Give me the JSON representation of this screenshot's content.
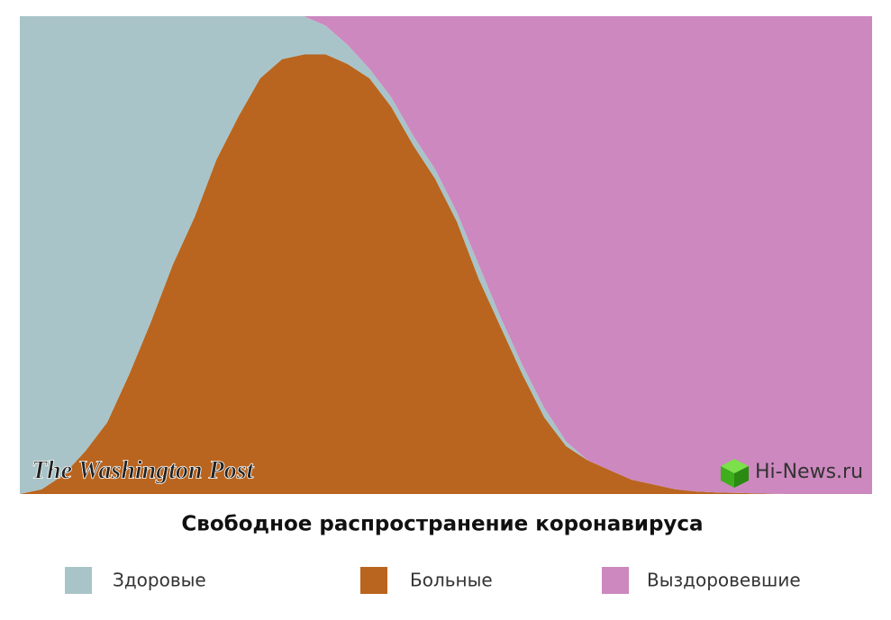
{
  "chart_data": {
    "type": "area",
    "stacked": true,
    "title": "Свободное распространение коронавируса",
    "watermarks": [
      "The Washington Post",
      "Hi-News.ru"
    ],
    "categories": [
      null,
      null,
      null,
      null,
      null,
      null,
      null,
      null,
      null,
      null,
      null,
      null,
      null,
      null,
      null,
      null,
      null,
      null,
      null,
      null,
      null,
      null,
      null,
      null,
      null,
      null,
      null,
      null,
      null,
      null,
      null,
      null,
      null,
      null,
      null,
      null,
      null,
      null,
      null,
      null
    ],
    "ylim": [
      0,
      100
    ],
    "series": [
      {
        "name": "Здоровые",
        "color": "#a9c4c8",
        "values": [
          100,
          99,
          96,
          91,
          85,
          75,
          64,
          52,
          42,
          30,
          21,
          13,
          9,
          8,
          6,
          4,
          2,
          2,
          2,
          2,
          2,
          3,
          2,
          2,
          2,
          1,
          0,
          0,
          0,
          0,
          0,
          0,
          0,
          0,
          0,
          0,
          0,
          0,
          0,
          0
        ]
      },
      {
        "name": "Больные",
        "color": "#b9651f",
        "values": [
          0,
          1,
          4,
          9,
          15,
          25,
          36,
          48,
          58,
          70,
          79,
          87,
          91,
          92,
          92,
          90,
          87,
          81,
          73,
          66,
          57,
          45,
          35,
          25,
          16,
          10,
          7,
          5,
          3,
          2,
          1,
          0.5,
          0.3,
          0.2,
          0.1,
          0,
          0,
          0,
          0,
          0
        ]
      },
      {
        "name": "Выздоровевшие",
        "color": "#cc88bf",
        "values": [
          0,
          0,
          0,
          0,
          0,
          0,
          0,
          0,
          0,
          0,
          0,
          0,
          0,
          0,
          2,
          6,
          11,
          17,
          25,
          32,
          41,
          52,
          63,
          73,
          82,
          89,
          93,
          95,
          97,
          98,
          99,
          99.5,
          99.7,
          99.8,
          99.9,
          100,
          100,
          100,
          100,
          100
        ]
      }
    ]
  }
}
